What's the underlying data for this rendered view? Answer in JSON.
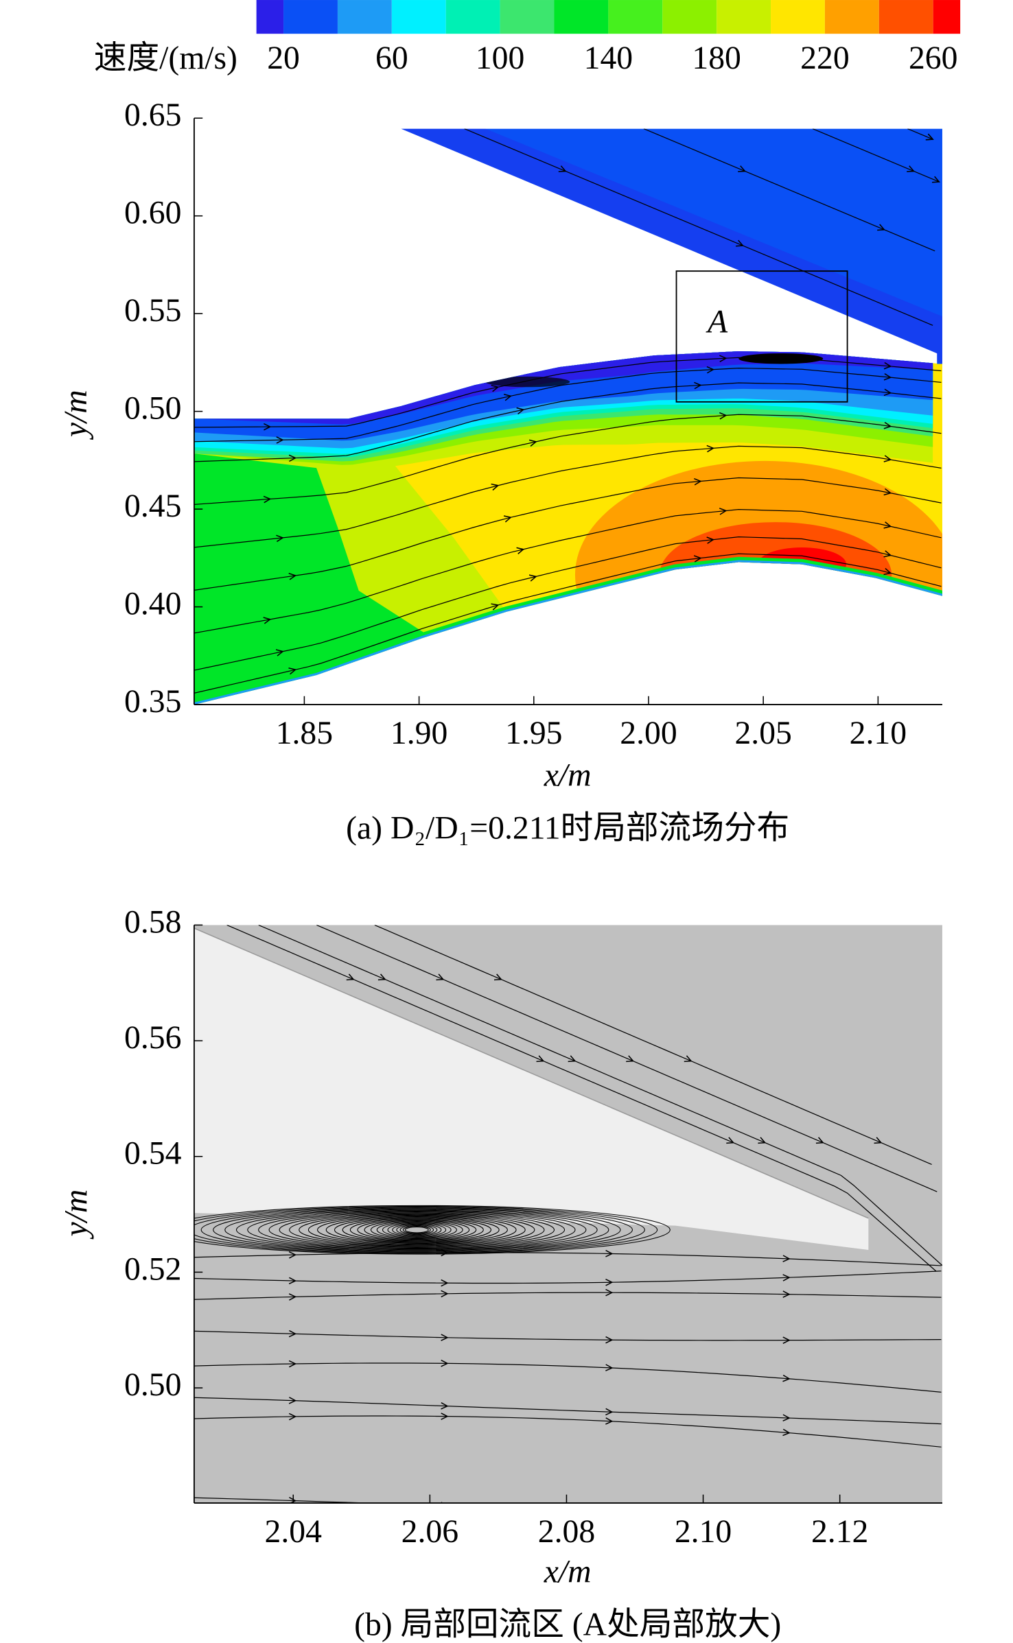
{
  "chart_data": [
    {
      "type": "contour",
      "colorbar": {
        "label": "速度/(m/s)",
        "lim": [
          10,
          270
        ],
        "levels": [
          10,
          20,
          40,
          60,
          80,
          100,
          120,
          140,
          160,
          180,
          200,
          220,
          240,
          260,
          270
        ],
        "colors": [
          "#2b1fe8",
          "#0a50f5",
          "#1e9bf5",
          "#00f0ff",
          "#00f0b4",
          "#3ce66e",
          "#00e628",
          "#46f01e",
          "#8cf000",
          "#c8f000",
          "#ffe600",
          "#ffa000",
          "#ff5000",
          "#ff0000"
        ],
        "ticks": [
          20,
          60,
          100,
          140,
          180,
          220,
          260
        ]
      },
      "xlim": [
        1.802,
        2.128
      ],
      "ylim": [
        0.35,
        0.65
      ],
      "xticks": [
        1.85,
        {
          "value": 1.9,
          "label": "1.90"
        },
        1.95,
        {
          "value": 2.0,
          "label": "2.00"
        },
        2.05,
        {
          "value": 2.1,
          "label": "2.10"
        }
      ],
      "yticks": [
        0.35,
        {
          "value": 0.4,
          "label": "0.40"
        },
        0.45,
        {
          "value": 0.5,
          "label": "0.50"
        },
        0.55,
        {
          "value": 0.6,
          "label": "0.60"
        },
        0.65
      ],
      "xlabel": "x/m",
      "ylabel": "y/m",
      "annotation": "A",
      "caption": "(a) D₂/D₁=0.211时局部流场分布"
    },
    {
      "type": "streamline",
      "xlim": [
        2.0255,
        2.135
      ],
      "ylim": [
        0.4801,
        0.58
      ],
      "xticks": [
        2.04,
        2.06,
        2.08,
        {
          "value": 2.1,
          "label": "2.10"
        },
        2.12
      ],
      "yticks": [
        {
          "value": 0.5,
          "label": "0.50"
        },
        0.52,
        0.54,
        0.56,
        0.58
      ],
      "xlabel": "x/m",
      "ylabel": "y/m",
      "caption": "(b) 局部回流区 (A处局部放大)"
    }
  ]
}
